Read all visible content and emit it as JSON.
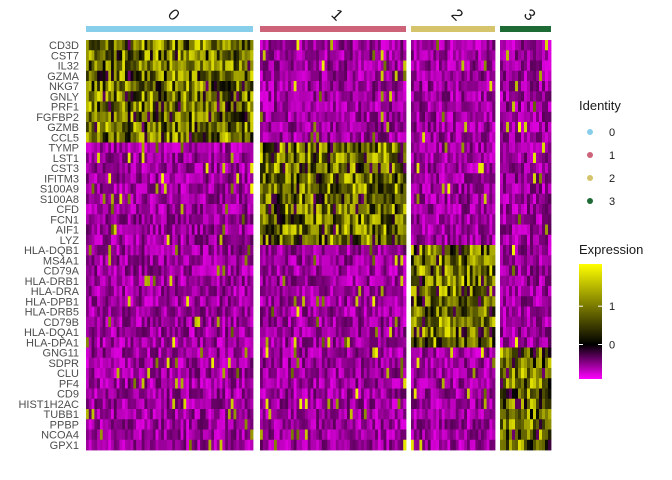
{
  "chart_data": {
    "type": "heatmap",
    "title": "",
    "genes": [
      "CD3D",
      "CST7",
      "IL32",
      "GZMA",
      "NKG7",
      "GNLY",
      "PRF1",
      "FGFBP2",
      "GZMB",
      "CCL5",
      "TYMP",
      "LST1",
      "CST3",
      "IFITM3",
      "S100A9",
      "S100A8",
      "CFD",
      "FCN1",
      "AIF1",
      "LYZ",
      "HLA-DQB1",
      "MS4A1",
      "CD79A",
      "HLA-DRB1",
      "HLA-DRA",
      "HLA-DPB1",
      "HLA-DRB5",
      "CD79B",
      "HLA-DQA1",
      "HLA-DPA1",
      "GNG11",
      "SDPR",
      "CLU",
      "PF4",
      "CD9",
      "HIST1H2AC",
      "TUBB1",
      "PPBP",
      "NCOA4",
      "GPX1"
    ],
    "clusters": [
      {
        "name": "0",
        "color": "#87CEEB",
        "cells": 60
      },
      {
        "name": "1",
        "color": "#CD6379",
        "cells": 52
      },
      {
        "name": "2",
        "color": "#D6C46C",
        "cells": 30
      },
      {
        "name": "3",
        "color": "#1E6B35",
        "cells": 17
      }
    ],
    "marker_genes_per_cluster": [
      [
        "CD3D",
        "CST7",
        "IL32",
        "GZMA",
        "NKG7",
        "GNLY",
        "PRF1",
        "FGFBP2",
        "GZMB",
        "CCL5"
      ],
      [
        "TYMP",
        "LST1",
        "CST3",
        "IFITM3",
        "S100A9",
        "S100A8",
        "CFD",
        "FCN1",
        "AIF1",
        "LYZ"
      ],
      [
        "HLA-DQB1",
        "MS4A1",
        "CD79A",
        "HLA-DRB1",
        "HLA-DRA",
        "HLA-DPB1",
        "HLA-DRB5",
        "CD79B",
        "HLA-DQA1",
        "HLA-DPA1"
      ],
      [
        "GNG11",
        "SDPR",
        "CLU",
        "PF4",
        "CD9",
        "HIST1H2AC",
        "TUBB1",
        "PPBP",
        "NCOA4",
        "GPX1"
      ]
    ],
    "color_scale": {
      "low": "#FF00FF",
      "mid": "#000000",
      "high": "#FFFF00",
      "range": [
        -0.9,
        2.1
      ]
    },
    "identity_legend": {
      "title": "Identity",
      "labels": [
        "0",
        "1",
        "2",
        "3"
      ]
    },
    "expression_legend": {
      "title": "Expression",
      "tick_labels": [
        "1",
        "0"
      ],
      "tick_values": [
        1,
        0
      ]
    }
  }
}
